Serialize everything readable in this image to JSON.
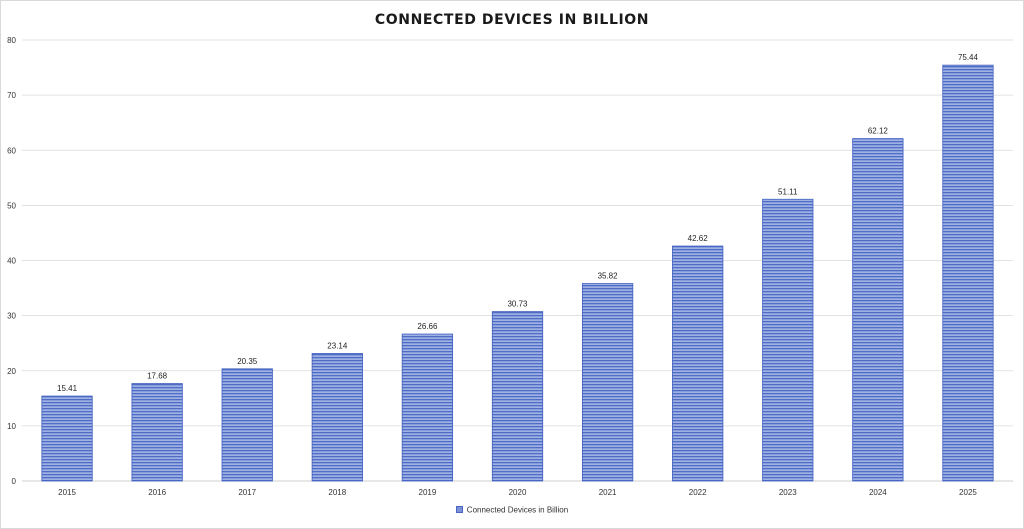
{
  "chart_data": {
    "type": "bar",
    "title": "CONNECTED DEVICES IN BILLION",
    "categories": [
      "2015",
      "2016",
      "2017",
      "2018",
      "2019",
      "2020",
      "2021",
      "2022",
      "2023",
      "2024",
      "2025"
    ],
    "series": [
      {
        "name": "Connected Devices in Billion",
        "values": [
          15.41,
          17.68,
          20.35,
          23.14,
          26.66,
          30.73,
          35.82,
          42.62,
          51.11,
          62.12,
          75.44
        ],
        "labels": [
          "15.41",
          "17.68",
          "20.35",
          "23.14",
          "26.66",
          "30.73",
          "35.82",
          "42.62",
          "51.11",
          "62.12",
          "75.44"
        ]
      }
    ],
    "xlabel": "",
    "ylabel": "",
    "ylim": [
      0,
      80
    ],
    "yticks": [
      0,
      10,
      20,
      30,
      40,
      50,
      60,
      70,
      80
    ],
    "grid": true,
    "legend_position": "bottom",
    "colors": {
      "bar_fill": "#7b93d6",
      "bar_stripe": "#4a66c4",
      "grid": "#d9d9d9"
    }
  }
}
